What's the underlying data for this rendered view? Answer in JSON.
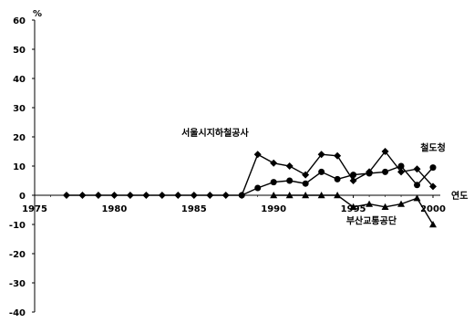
{
  "chart_data": {
    "type": "line",
    "title": "",
    "xlabel": "연도",
    "ylabel": "%",
    "xlim": [
      1975,
      2000
    ],
    "ylim": [
      -40,
      60
    ],
    "x_ticks": [
      1975,
      1980,
      1985,
      1990,
      1995,
      2000
    ],
    "y_ticks": [
      60,
      50,
      40,
      30,
      20,
      10,
      0,
      -10,
      -20,
      -30,
      -40
    ],
    "grid": false,
    "series": [
      {
        "name": "서울시지하철공사",
        "marker": "diamond",
        "color": "#000000",
        "points": [
          {
            "x": 1977,
            "y": 0
          },
          {
            "x": 1978,
            "y": 0
          },
          {
            "x": 1979,
            "y": 0
          },
          {
            "x": 1980,
            "y": 0
          },
          {
            "x": 1981,
            "y": 0
          },
          {
            "x": 1982,
            "y": 0
          },
          {
            "x": 1983,
            "y": 0
          },
          {
            "x": 1984,
            "y": 0
          },
          {
            "x": 1985,
            "y": 0
          },
          {
            "x": 1986,
            "y": 0
          },
          {
            "x": 1987,
            "y": 0
          },
          {
            "x": 1988,
            "y": 0
          },
          {
            "x": 1989,
            "y": 14
          },
          {
            "x": 1990,
            "y": 11
          },
          {
            "x": 1991,
            "y": 10
          },
          {
            "x": 1992,
            "y": 7
          },
          {
            "x": 1993,
            "y": 14
          },
          {
            "x": 1994,
            "y": 13.5
          },
          {
            "x": 1995,
            "y": 5
          },
          {
            "x": 1996,
            "y": 8
          },
          {
            "x": 1997,
            "y": 15
          },
          {
            "x": 1998,
            "y": 8
          },
          {
            "x": 1999,
            "y": 9
          },
          {
            "x": 2000,
            "y": 3
          }
        ]
      },
      {
        "name": "철도청",
        "marker": "circle",
        "color": "#000000",
        "points": [
          {
            "x": 1988,
            "y": 0
          },
          {
            "x": 1989,
            "y": 2.5
          },
          {
            "x": 1990,
            "y": 4.5
          },
          {
            "x": 1991,
            "y": 5
          },
          {
            "x": 1992,
            "y": 4
          },
          {
            "x": 1993,
            "y": 8
          },
          {
            "x": 1994,
            "y": 5.5
          },
          {
            "x": 1995,
            "y": 7
          },
          {
            "x": 1996,
            "y": 7.5
          },
          {
            "x": 1997,
            "y": 8
          },
          {
            "x": 1998,
            "y": 10
          },
          {
            "x": 1999,
            "y": 3.5
          },
          {
            "x": 2000,
            "y": 9.5
          }
        ]
      },
      {
        "name": "부산교통공단",
        "marker": "triangle",
        "color": "#000000",
        "points": [
          {
            "x": 1990,
            "y": 0
          },
          {
            "x": 1991,
            "y": 0
          },
          {
            "x": 1992,
            "y": 0
          },
          {
            "x": 1993,
            "y": 0
          },
          {
            "x": 1994,
            "y": 0
          },
          {
            "x": 1995,
            "y": -4
          },
          {
            "x": 1996,
            "y": -3
          },
          {
            "x": 1997,
            "y": -4
          },
          {
            "x": 1998,
            "y": -3
          },
          {
            "x": 1999,
            "y": -1
          },
          {
            "x": 2000,
            "y": -10
          }
        ]
      }
    ],
    "annotations": [
      {
        "text": "서울시지하철공사",
        "series": 0,
        "anchor": "above-left",
        "at_x": 1989
      },
      {
        "text": "철도청",
        "series": 1,
        "anchor": "right",
        "at_x": 2000
      },
      {
        "text": "부산교통공단",
        "series": 2,
        "anchor": "below-left",
        "at_x": 1998
      }
    ]
  }
}
